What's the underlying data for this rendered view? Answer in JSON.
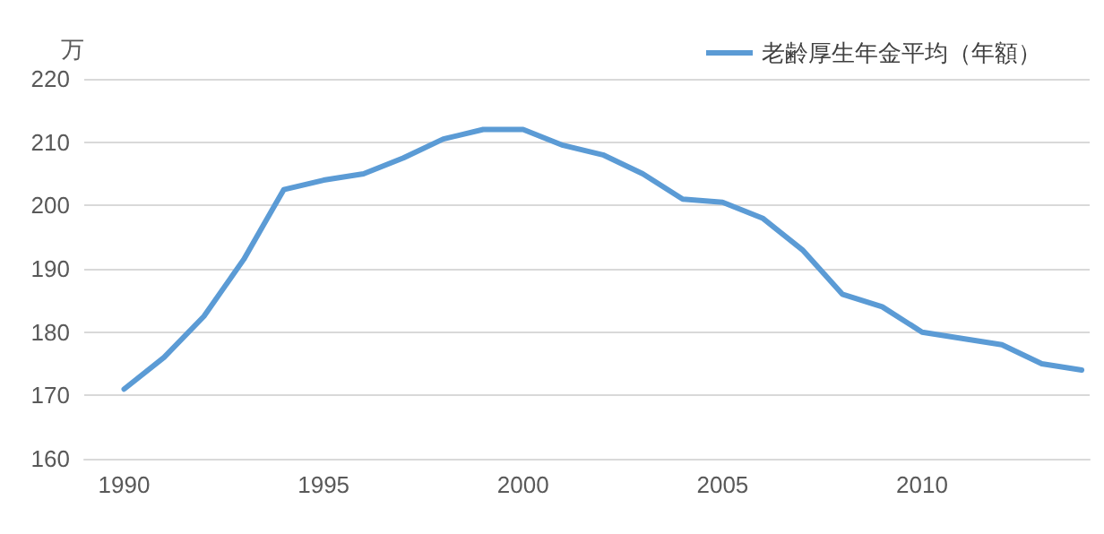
{
  "chart_data": {
    "type": "line",
    "ylabel": "万",
    "x": [
      1990,
      1991,
      1992,
      1993,
      1994,
      1995,
      1996,
      1997,
      1998,
      1999,
      2000,
      2001,
      2002,
      2003,
      2004,
      2005,
      2006,
      2007,
      2008,
      2009,
      2010,
      2011,
      2012,
      2013,
      2014
    ],
    "series": [
      {
        "name": "老齢厚生年金平均（年額）",
        "color": "#5b9bd5",
        "values": [
          171,
          176,
          182.5,
          191.5,
          202.5,
          204,
          205,
          207.5,
          210.5,
          212,
          212,
          209.5,
          208,
          205,
          201,
          200.5,
          198,
          193,
          186,
          184,
          180,
          179,
          178,
          175,
          174
        ]
      }
    ],
    "xlim": [
      1989,
      2014.2
    ],
    "xticks": [
      1990,
      1995,
      2000,
      2005,
      2010
    ],
    "ylim": [
      160,
      220
    ],
    "yticks": [
      160,
      170,
      180,
      190,
      200,
      210,
      220
    ],
    "grid": "y",
    "legend": "top right",
    "marker": "none",
    "line_style": "solid"
  }
}
